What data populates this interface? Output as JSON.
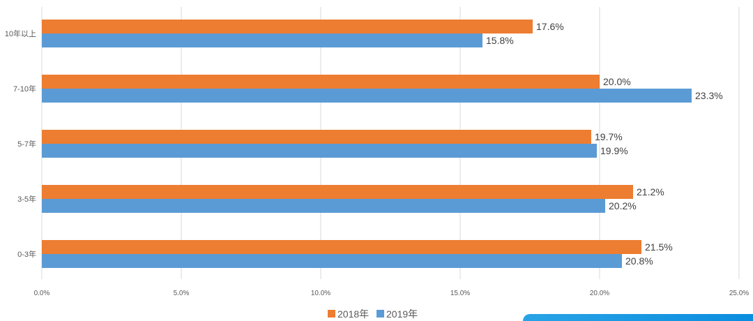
{
  "chart_data": {
    "type": "bar",
    "orientation": "horizontal",
    "categories": [
      "10年以上",
      "7-10年",
      "5-7年",
      "3-5年",
      "0-3年"
    ],
    "series": [
      {
        "name": "2018年",
        "color": "#ed7d31",
        "values": [
          17.6,
          20.0,
          19.7,
          21.2,
          21.5
        ],
        "labels": [
          "17.6%",
          "20.0%",
          "19.7%",
          "21.2%",
          "21.5%"
        ]
      },
      {
        "name": "2019年",
        "color": "#5b9bd5",
        "values": [
          15.8,
          23.3,
          19.9,
          20.2,
          20.8
        ],
        "labels": [
          "15.8%",
          "23.3%",
          "19.9%",
          "20.2%",
          "20.8%"
        ]
      }
    ],
    "xlim": [
      0,
      25
    ],
    "xticks": [
      "0.0%",
      "5.0%",
      "10.0%",
      "15.0%",
      "20.0%",
      "25.0%"
    ],
    "grid": true,
    "legend": "bottom-center",
    "title": "",
    "xlabel": "",
    "ylabel": ""
  },
  "colors": {
    "grid": "#d9d9d9",
    "decor_accent": "#1b98e3"
  }
}
